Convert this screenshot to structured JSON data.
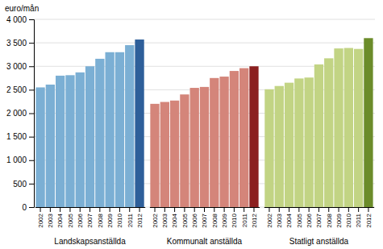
{
  "chart_data": {
    "type": "bar",
    "ylabel": "euro/mån",
    "categories": [
      "2002",
      "2003",
      "2004",
      "2005",
      "2006",
      "2007",
      "2008",
      "2009",
      "2010",
      "2011",
      "2012"
    ],
    "series": [
      {
        "name": "Landskapsanställda",
        "values": [
          2550,
          2610,
          2800,
          2810,
          2870,
          3000,
          3160,
          3300,
          3300,
          3450,
          3570
        ],
        "colors": [
          "#7bafd4",
          "#7bafd4",
          "#7bafd4",
          "#7bafd4",
          "#7bafd4",
          "#7bafd4",
          "#7bafd4",
          "#7bafd4",
          "#7bafd4",
          "#7bafd4",
          "#2e5f9a"
        ]
      },
      {
        "name": "Kommunalt anställda",
        "values": [
          2200,
          2240,
          2270,
          2400,
          2540,
          2560,
          2750,
          2780,
          2900,
          2960,
          3000
        ],
        "colors": [
          "#d4857a",
          "#d4857a",
          "#d4857a",
          "#d4857a",
          "#d4857a",
          "#d4857a",
          "#d4857a",
          "#d4857a",
          "#d4857a",
          "#d4857a",
          "#8b2020"
        ]
      },
      {
        "name": "Statligt anställda",
        "values": [
          2510,
          2580,
          2650,
          2740,
          2760,
          3040,
          3170,
          3380,
          3390,
          3370,
          3600
        ],
        "colors": [
          "#c2d484",
          "#c2d484",
          "#c2d484",
          "#c2d484",
          "#c2d484",
          "#c2d484",
          "#c2d484",
          "#c2d484",
          "#c2d484",
          "#c2d484",
          "#6b8c2a"
        ]
      }
    ],
    "ylim": [
      0,
      4000
    ],
    "yticks": [
      0,
      500,
      {
        "value": 1000,
        "label": "1 000"
      },
      {
        "value": 1500,
        "label": "1 500"
      },
      {
        "value": 2000,
        "label": "2 000"
      },
      {
        "value": 2500,
        "label": "2 500"
      },
      {
        "value": 3000,
        "label": "3 000"
      },
      {
        "value": 3500,
        "label": "3 500"
      },
      {
        "value": 4000,
        "label": "4 000"
      }
    ],
    "grid": true
  }
}
